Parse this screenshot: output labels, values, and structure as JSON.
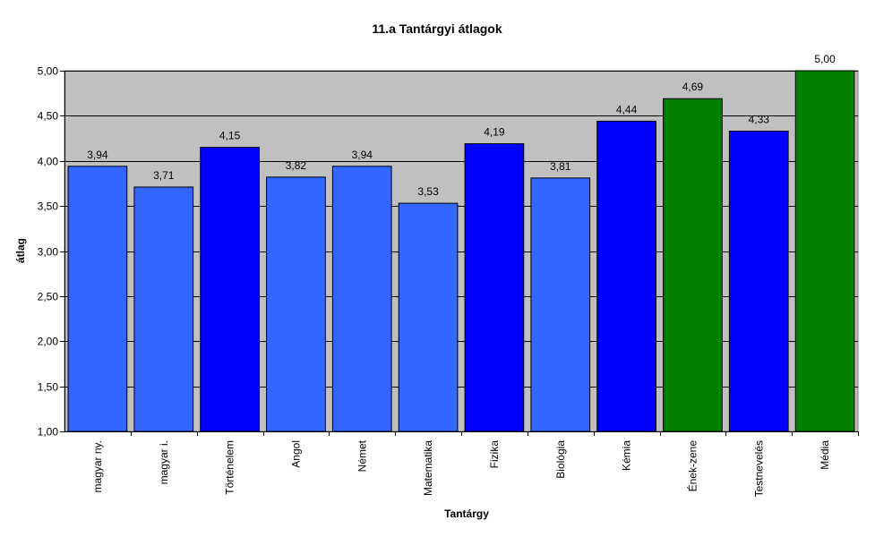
{
  "chart_data": {
    "type": "bar",
    "title": "11.a Tantárgyi átlagok",
    "xlabel": "Tantárgy",
    "ylabel": "átlag",
    "ylim": [
      1.0,
      5.0
    ],
    "ytick_step": 0.5,
    "grid": true,
    "legend": "none",
    "plot_background": "#C0C0C0",
    "categories": [
      "magyar ny.",
      "magyar i.",
      "Történelem",
      "Angol",
      "Német",
      "Matematika",
      "Fizika",
      "Biológia",
      "Kémia",
      "Ének-zene",
      "Testnevelés",
      "Média"
    ],
    "values": [
      3.94,
      3.71,
      4.15,
      3.82,
      3.94,
      3.53,
      4.19,
      3.81,
      4.44,
      4.69,
      4.33,
      5.0
    ],
    "value_labels": [
      "3,94",
      "3,71",
      "4,15",
      "3,82",
      "3,94",
      "3,53",
      "4,19",
      "3,81",
      "4,44",
      "4,69",
      "4,33",
      "5,00"
    ],
    "ytick_labels": [
      "1,00",
      "1,50",
      "2,00",
      "2,50",
      "3,00",
      "3,50",
      "4,00",
      "4,50",
      "5,00"
    ],
    "bar_colors": [
      "#3366FF",
      "#3366FF",
      "#0000FF",
      "#3366FF",
      "#3366FF",
      "#3366FF",
      "#0000FF",
      "#3366FF",
      "#0000FF",
      "#008000",
      "#0000FF",
      "#008000"
    ]
  }
}
